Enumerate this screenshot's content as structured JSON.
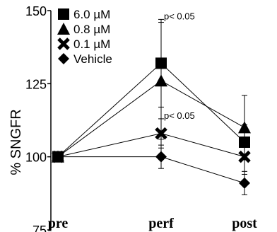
{
  "chart_data": {
    "type": "line",
    "title": "",
    "xlabel": "",
    "ylabel": "% SNGFR",
    "categories": [
      "pre",
      "perf",
      "post"
    ],
    "yticks": [
      75,
      100,
      125,
      150
    ],
    "ylim": [
      75,
      150
    ],
    "grid": false,
    "legend_position": "top-left",
    "series": [
      {
        "name": "6.0 µM",
        "marker": "square",
        "values": [
          100,
          132,
          105
        ],
        "errors": [
          0,
          15,
          6
        ]
      },
      {
        "name": "0.8 µM",
        "marker": "triangle",
        "values": [
          100,
          126,
          110
        ],
        "errors": [
          0,
          20,
          11
        ]
      },
      {
        "name": "0.1 µM",
        "marker": "x",
        "values": [
          100,
          108,
          100
        ],
        "errors": [
          0,
          5,
          6
        ]
      },
      {
        "name": "Vehicle",
        "marker": "diamond",
        "values": [
          100,
          100,
          91
        ],
        "errors": [
          0,
          4,
          4
        ]
      }
    ],
    "annotations": [
      {
        "text": "p< 0.05",
        "category": "perf",
        "y": 147
      },
      {
        "text": "p< 0.05",
        "category": "perf",
        "y": 113
      }
    ],
    "color": "#000000"
  }
}
